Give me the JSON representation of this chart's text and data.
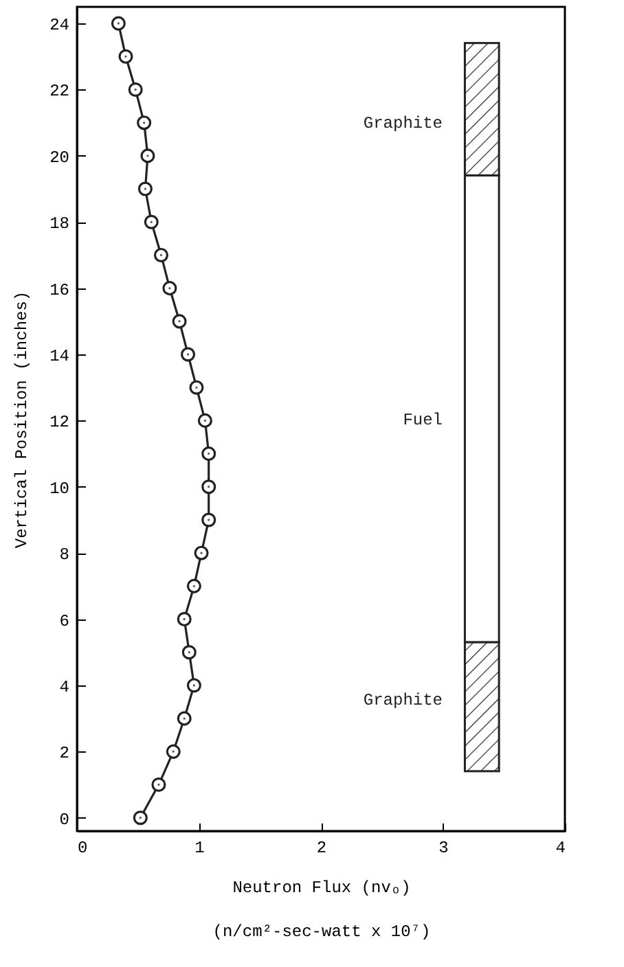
{
  "chart_data": {
    "type": "line",
    "xlabel": "Neutron Flux (nvₒ)\n(n/cm²-sec-watt x 10⁷)",
    "ylabel": "Vertical Position (inches)",
    "x": [
      0.52,
      0.67,
      0.79,
      0.88,
      0.96,
      0.92,
      0.88,
      0.96,
      1.02,
      1.08,
      1.08,
      1.08,
      1.05,
      0.98,
      0.91,
      0.84,
      0.76,
      0.69,
      0.61,
      0.56,
      0.58,
      0.55,
      0.48,
      0.4,
      0.34
    ],
    "series": [
      {
        "color": "#222222",
        "values": [
          0,
          1,
          2,
          3,
          4,
          5,
          6,
          7,
          8,
          9,
          10,
          11,
          12,
          13,
          14,
          15,
          16,
          17,
          18,
          19,
          20,
          21,
          22,
          23,
          24
        ]
      }
    ],
    "xlim": [
      0,
      4
    ],
    "xticks": [
      0,
      1,
      2,
      3,
      4
    ],
    "ylim": [
      -0.4,
      24.5
    ],
    "yticks": [
      0,
      2,
      4,
      6,
      8,
      10,
      12,
      14,
      16,
      18,
      20,
      22,
      24
    ],
    "marker": "circle",
    "grid": false,
    "annotations": [
      "Graphite",
      "Fuel",
      "Graphite"
    ]
  }
}
